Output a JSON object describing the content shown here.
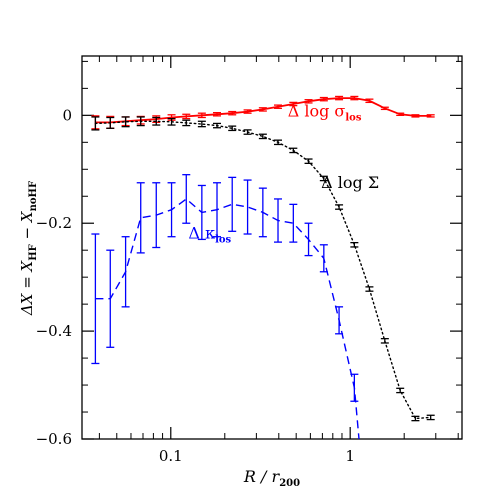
{
  "chart_data": {
    "type": "line",
    "xlabel": {
      "main": "R / r",
      "sub": "200"
    },
    "ylabel": {
      "a": "ΔX = X",
      "b": "HF",
      "c": " − X",
      "d": "noHF"
    },
    "xscale": "log",
    "xlim": [
      0.032,
      4.2
    ],
    "ylim": [
      -0.6,
      0.11
    ],
    "xticks": [
      {
        "value": 0.1,
        "label": "0.1"
      },
      {
        "value": 1,
        "label": "1"
      }
    ],
    "yticks": [
      {
        "value": 0,
        "label": "0"
      },
      {
        "value": -0.2,
        "label": "−0.2"
      },
      {
        "value": -0.4,
        "label": "−0.4"
      },
      {
        "value": -0.6,
        "label": "−0.6"
      }
    ],
    "grid": false,
    "series": [
      {
        "name": "Δ log σ_los",
        "label": {
          "main": "Δ log σ",
          "sub": "los"
        },
        "color": "#ff0000",
        "style": "solid",
        "x": [
          0.038,
          0.046,
          0.056,
          0.068,
          0.083,
          0.101,
          0.122,
          0.149,
          0.181,
          0.22,
          0.268,
          0.326,
          0.396,
          0.482,
          0.586,
          0.713,
          0.867,
          1.055,
          1.28,
          1.56,
          1.9,
          2.31,
          2.81
        ],
        "y": [
          -0.013,
          -0.013,
          -0.011,
          -0.009,
          -0.007,
          -0.004,
          -0.002,
          0.0,
          0.002,
          0.004,
          0.007,
          0.011,
          0.016,
          0.021,
          0.026,
          0.03,
          0.032,
          0.032,
          0.027,
          0.013,
          0.002,
          -0.001,
          -0.001
        ],
        "err": [
          0.012,
          0.011,
          0.008,
          0.007,
          0.006,
          0.005,
          0.004,
          0.004,
          0.003,
          0.003,
          0.003,
          0.003,
          0.003,
          0.003,
          0.003,
          0.003,
          0.003,
          0.003,
          0.003,
          0.002,
          0.002,
          0.002,
          0.002
        ]
      },
      {
        "name": "Δ log Σ",
        "label": {
          "main": "Δ log Σ",
          "sub": ""
        },
        "color": "#000000",
        "style": "dotted",
        "x": [
          0.038,
          0.046,
          0.056,
          0.068,
          0.083,
          0.101,
          0.122,
          0.149,
          0.181,
          0.22,
          0.268,
          0.326,
          0.396,
          0.482,
          0.586,
          0.713,
          0.867,
          1.055,
          1.28,
          1.56,
          1.9,
          2.31,
          2.81
        ],
        "y": [
          -0.015,
          -0.014,
          -0.012,
          -0.011,
          -0.011,
          -0.012,
          -0.014,
          -0.016,
          -0.019,
          -0.024,
          -0.031,
          -0.039,
          -0.05,
          -0.065,
          -0.085,
          -0.117,
          -0.17,
          -0.24,
          -0.322,
          -0.418,
          -0.51,
          -0.562,
          -0.56
        ],
        "err": [
          0.012,
          0.01,
          0.009,
          0.008,
          0.007,
          0.006,
          0.005,
          0.005,
          0.004,
          0.004,
          0.004,
          0.004,
          0.004,
          0.004,
          0.004,
          0.004,
          0.004,
          0.004,
          0.004,
          0.004,
          0.004,
          0.004,
          0.004
        ]
      },
      {
        "name": "Δ κ_los",
        "label": {
          "main": "Δ κ",
          "sub": "los"
        },
        "color": "#0000ff",
        "style": "dashed",
        "x": [
          0.038,
          0.046,
          0.056,
          0.068,
          0.083,
          0.101,
          0.122,
          0.149,
          0.181,
          0.22,
          0.268,
          0.326,
          0.396,
          0.482,
          0.586,
          0.713,
          0.867,
          1.055,
          1.12
        ],
        "y": [
          -0.34,
          -0.34,
          -0.29,
          -0.19,
          -0.185,
          -0.175,
          -0.155,
          -0.18,
          -0.175,
          -0.165,
          -0.17,
          -0.18,
          -0.195,
          -0.2,
          -0.23,
          -0.265,
          -0.38,
          -0.505,
          -0.6
        ],
        "err": [
          0.12,
          0.09,
          0.065,
          0.065,
          0.06,
          0.05,
          0.045,
          0.05,
          0.05,
          0.05,
          0.05,
          0.045,
          0.04,
          0.035,
          0.03,
          0.025,
          0.025,
          0.025,
          0.0
        ]
      }
    ]
  }
}
